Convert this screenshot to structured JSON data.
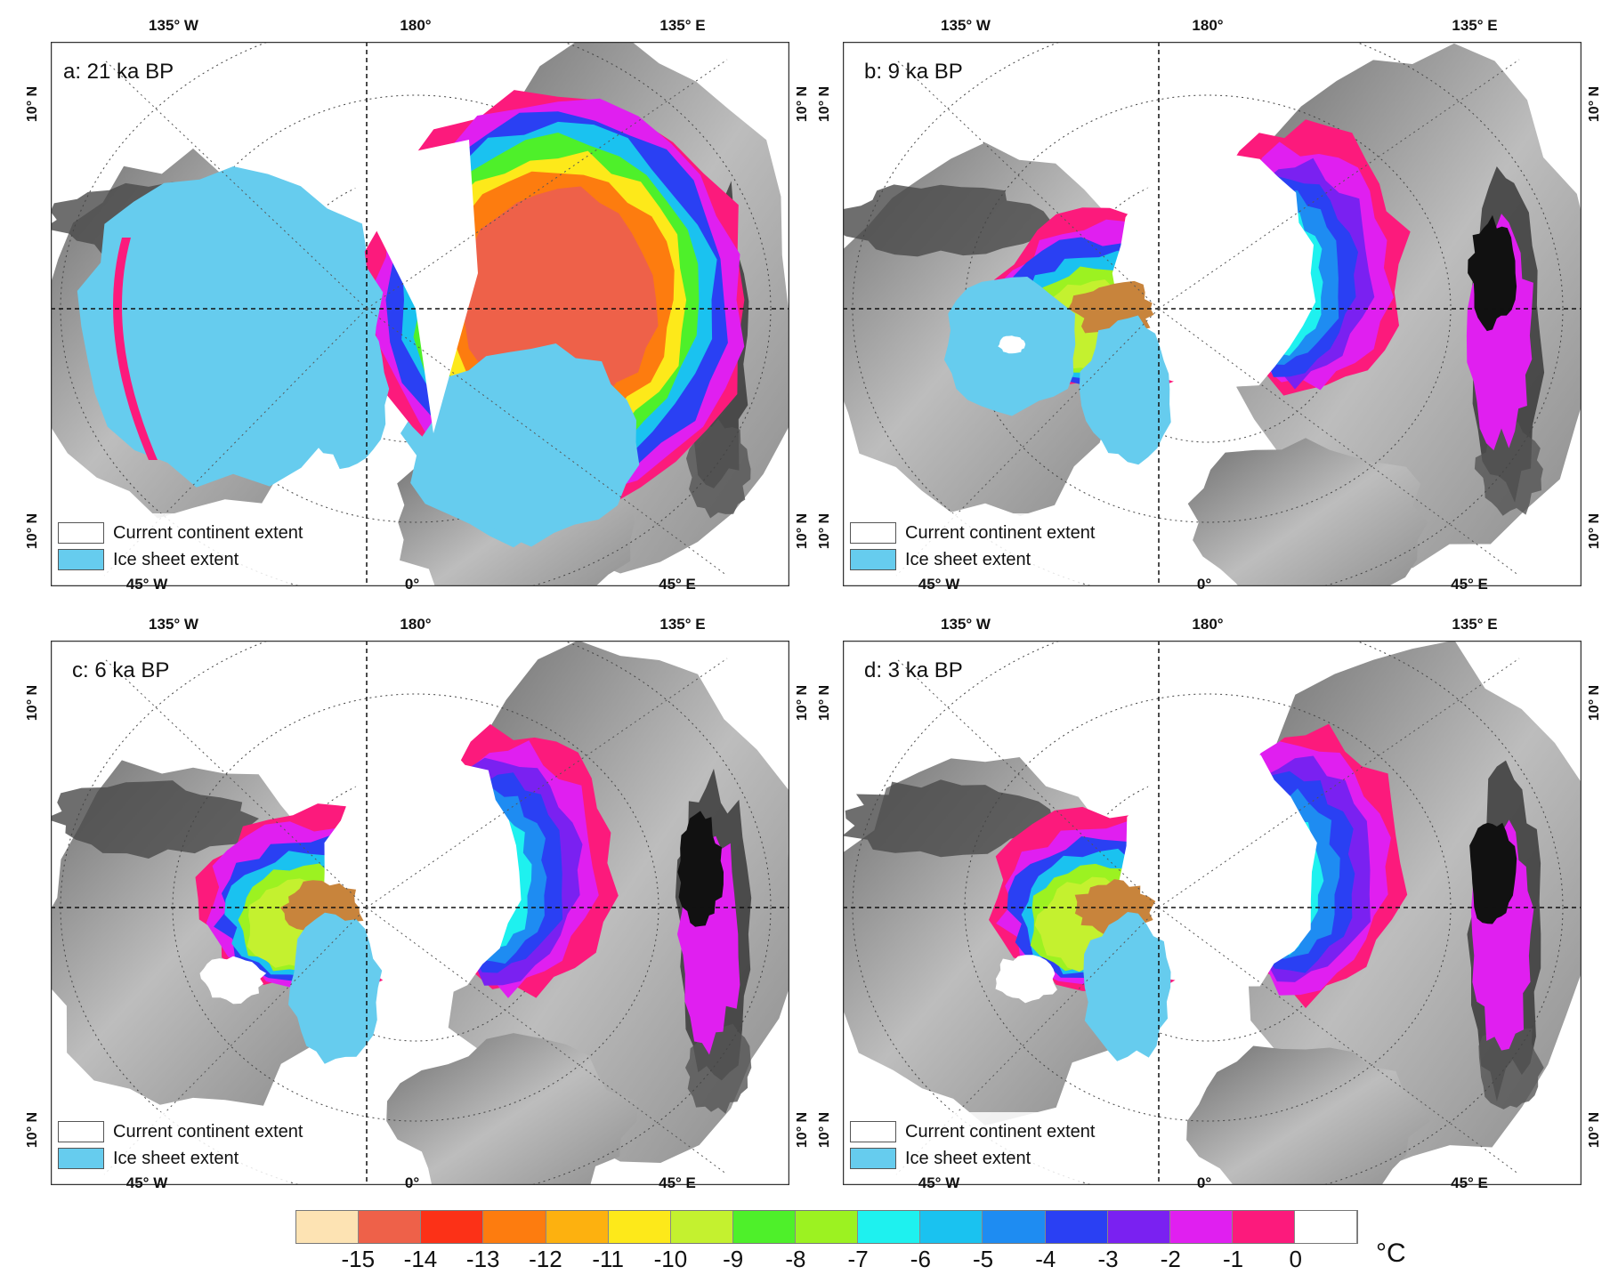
{
  "panels": [
    {
      "id": "a",
      "title": "a: 21 ka BP",
      "variant": 0
    },
    {
      "id": "b",
      "title": "b: 9 ka BP",
      "variant": 1
    },
    {
      "id": "c",
      "title": "c: 6 ka BP",
      "variant": 2
    },
    {
      "id": "d",
      "title": "d: 3 ka BP",
      "variant": 3
    }
  ],
  "axis_labels": {
    "top_left": "135° W",
    "top_center": "180°",
    "top_right": "135° E",
    "bottom_left": "45° W",
    "bottom_center": "0°",
    "bottom_right": "45° E",
    "side": "10° N"
  },
  "legend": {
    "continent_label": "Current continent extent",
    "ice_label": "Ice sheet extent",
    "ice_color": "#66ccee"
  },
  "colorbar": {
    "colors": [
      "#fde3b3",
      "#ee6149",
      "#fc3117",
      "#fd7c0f",
      "#fdb10f",
      "#fde91a",
      "#c4f12f",
      "#4ef02a",
      "#9cf221",
      "#1ef1ef",
      "#1ac2f0",
      "#1e8cf2",
      "#2a40f3",
      "#7a21f1",
      "#e01ff0",
      "#fc1a7c",
      "#ffffff"
    ],
    "ticks": [
      "-15",
      "-14",
      "-13",
      "-12",
      "-11",
      "-10",
      "-9",
      "-8",
      "-7",
      "-6",
      "-5",
      "-4",
      "-3",
      "-2",
      "-1",
      "0"
    ],
    "unit": "°C"
  },
  "colors": {
    "land_light": "#bdbdbd",
    "land_dark": "#454545",
    "ice": "#66ccee",
    "frame": "#333333"
  }
}
